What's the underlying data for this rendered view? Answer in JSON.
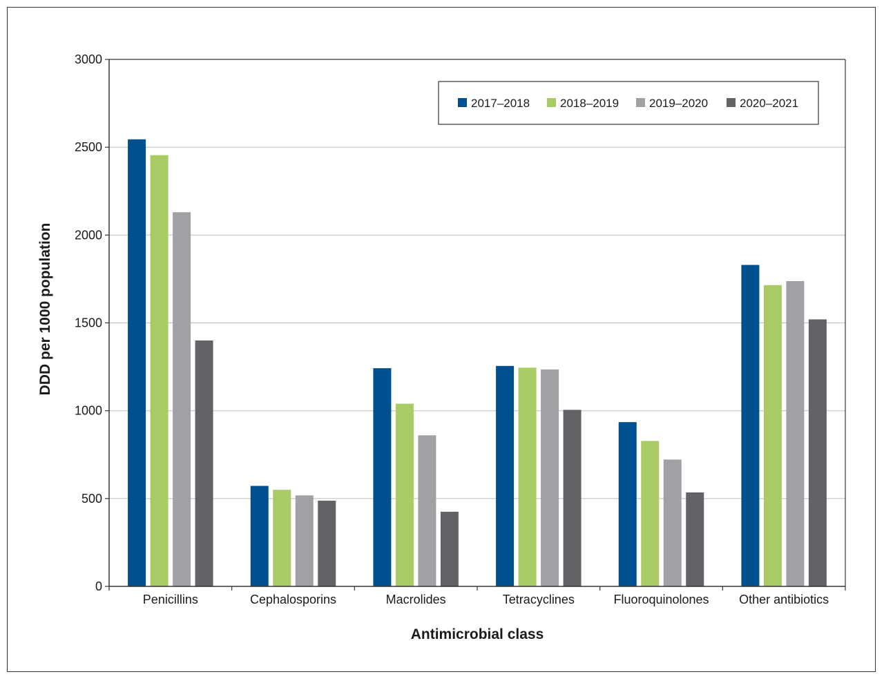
{
  "chart_data": {
    "type": "bar",
    "xlabel": "Antimicrobial class",
    "ylabel": "DDD per 1000 population",
    "ylim": [
      0,
      3000
    ],
    "yticks": [
      0,
      500,
      1000,
      1500,
      2000,
      2500,
      3000
    ],
    "grid": true,
    "legend_position": "top-right",
    "categories": [
      "Penicillins",
      "Cephalosporins",
      "Macrolides",
      "Tetracyclines",
      "Fluoroquinolones",
      "Other antibiotics"
    ],
    "series": [
      {
        "name": "2017–2018",
        "color": "#00508f",
        "values": [
          2545,
          572,
          1242,
          1255,
          935,
          1830
        ]
      },
      {
        "name": "2018–2019",
        "color": "#a8cb66",
        "values": [
          2455,
          550,
          1040,
          1245,
          828,
          1715
        ]
      },
      {
        "name": "2019–2020",
        "color": "#a0a1a5",
        "values": [
          2130,
          518,
          860,
          1235,
          722,
          1738
        ]
      },
      {
        "name": "2020–2021",
        "color": "#626366",
        "values": [
          1400,
          488,
          425,
          1005,
          535,
          1520
        ]
      }
    ]
  }
}
